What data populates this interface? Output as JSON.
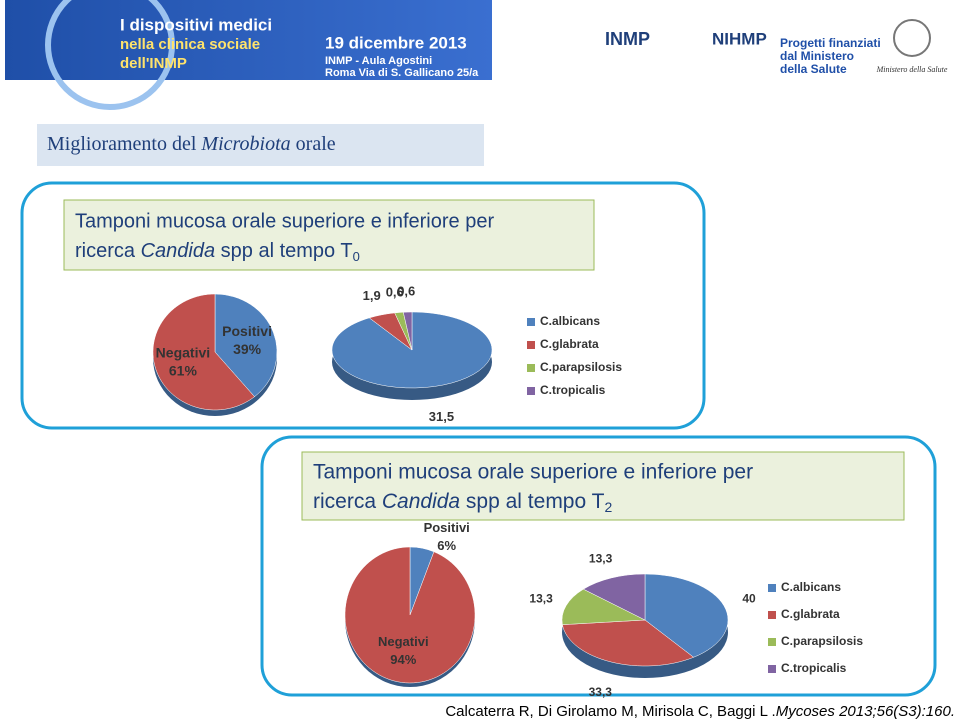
{
  "header": {
    "event_title": [
      "I dispositivi medici",
      "nella clinica sociale",
      "dell'INMP"
    ],
    "date": "19 dicembre 2013",
    "venue": "INMP - Aula Agostini",
    "address": "Roma Via di S. Gallicano 25/a",
    "logos": [
      "INMP",
      "NIHMP"
    ],
    "funding": [
      "Progetti finanziati",
      "dal Ministero",
      "della Salute"
    ],
    "ministry": "Ministero della Salute"
  },
  "title": [
    "Miglioramento del ",
    "Microbiota",
    " orale"
  ],
  "panels": [
    {
      "caption": [
        "Tamponi mucosa orale superiore e inferiore per",
        "ricerca ",
        "Candida",
        " spp al tempo T",
        "0"
      ]
    },
    {
      "caption": [
        "Tamponi mucosa orale superiore e inferiore per",
        "ricerca ",
        "Candida",
        " spp al tempo T",
        "2"
      ]
    }
  ],
  "chart_data": [
    {
      "type": "pie",
      "categories": [
        "Positivi",
        "Negativi"
      ],
      "values": [
        39,
        61
      ],
      "value_labels": [
        "39%",
        "61%"
      ],
      "colors": [
        "#4f81bd",
        "#c0504d"
      ]
    },
    {
      "type": "pie",
      "categories": [
        "C.albicans",
        "C.glabrata",
        "C.parapsilosis",
        "C.tropicalis"
      ],
      "values": [
        31.5,
        1.9,
        0.6,
        0.6
      ],
      "value_labels": [
        "31,5",
        "1,9",
        "0,6",
        "0,6"
      ],
      "colors": [
        "#4f81bd",
        "#c0504d",
        "#9bbb59",
        "#8064a2"
      ],
      "legend": "right"
    },
    {
      "type": "pie",
      "categories": [
        "Positivi",
        "Negativi"
      ],
      "values": [
        6,
        94
      ],
      "value_labels": [
        "6%",
        "94%"
      ],
      "colors": [
        "#4f81bd",
        "#c0504d"
      ]
    },
    {
      "type": "pie",
      "categories": [
        "C.albicans",
        "C.glabrata",
        "C.parapsilosis",
        "C.tropicalis"
      ],
      "values": [
        40,
        33.3,
        13.3,
        13.3
      ],
      "value_labels": [
        "40",
        "33,3",
        "13,3",
        "13,3"
      ],
      "colors": [
        "#4f81bd",
        "#c0504d",
        "#9bbb59",
        "#8064a2"
      ],
      "legend": "right"
    }
  ],
  "citation": [
    "Calcaterra R, Di Girolamo M, Mirisola C, Baggi L .",
    "Mycoses 2013;56(S3):160."
  ]
}
